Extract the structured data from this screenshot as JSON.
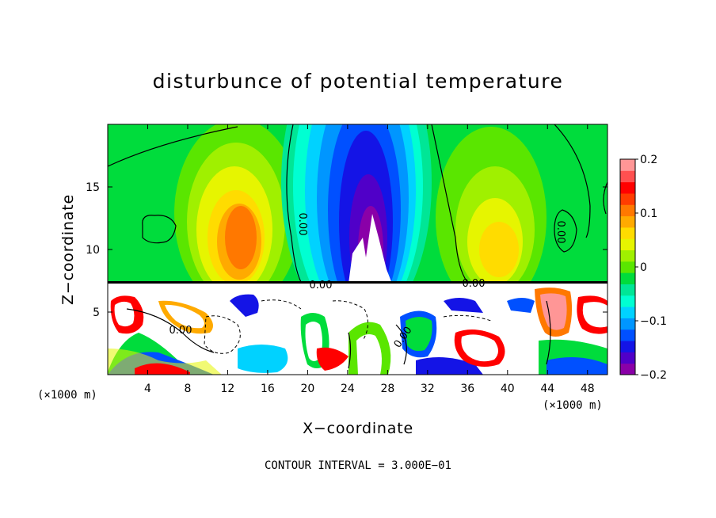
{
  "chart_data": {
    "type": "heatmap",
    "title": "disturbunce of potential temperature",
    "xlabel": "X−coordinate",
    "ylabel": "Z−coordinate",
    "x_unit": "(×1000 m)",
    "x_ticks": [
      4,
      8,
      12,
      16,
      20,
      24,
      28,
      32,
      36,
      40,
      44,
      48
    ],
    "y_ticks": [
      5,
      10,
      15
    ],
    "xlim": [
      0,
      50
    ],
    "ylim": [
      0,
      20
    ],
    "colorbar": {
      "min": -0.2,
      "max": 0.2,
      "tick_values": [
        0.2,
        0.1,
        0,
        -0.1,
        -0.2
      ],
      "tick_labels": [
        "0.2",
        "0.1",
        "0",
        "−0.1",
        "−0.2"
      ],
      "colors": [
        "#8a00a8",
        "#5000c8",
        "#1414e6",
        "#0050ff",
        "#0096ff",
        "#00d2ff",
        "#00ffd2",
        "#00e696",
        "#00dc3c",
        "#5ae600",
        "#a0f000",
        "#e6f500",
        "#ffdc00",
        "#ffaa00",
        "#ff7800",
        "#ff3c00",
        "#ff0000",
        "#ff5050",
        "#ff9696"
      ]
    },
    "contour_labels": [
      "0.00",
      "0.00",
      "0.00",
      "0.00",
      "0.00",
      "0.00"
    ],
    "footer": "CONTOUR INTERVAL = 3.000E−01"
  }
}
